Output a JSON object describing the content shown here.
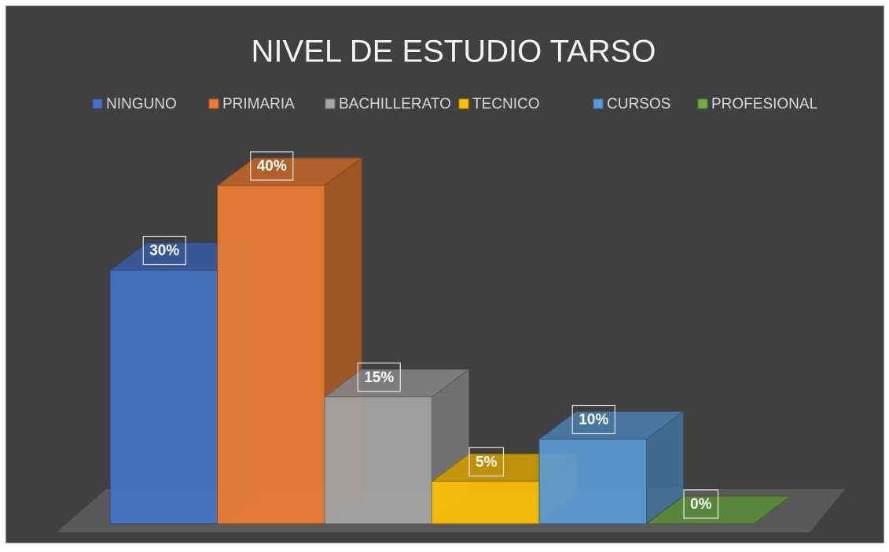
{
  "chart_data": {
    "type": "bar",
    "title": "NIVEL DE ESTUDIO TARSO",
    "series": [
      {
        "name": "NINGUNO",
        "color": "#4472c4",
        "values": [
          30
        ],
        "value_labels": [
          "30%"
        ]
      },
      {
        "name": "PRIMARIA",
        "color": "#ed7d31",
        "values": [
          40
        ],
        "value_labels": [
          "40%"
        ]
      },
      {
        "name": "BACHILLERATO",
        "color": "#a5a5a5",
        "values": [
          15
        ],
        "value_labels": [
          "15%"
        ]
      },
      {
        "name": "TECNICO",
        "color": "#ffc000",
        "values": [
          5
        ],
        "value_labels": [
          "5%"
        ]
      },
      {
        "name": "CURSOS",
        "color": "#5b9bd5",
        "values": [
          10
        ],
        "value_labels": [
          "10%"
        ]
      },
      {
        "name": "PROFESIONAL",
        "color": "#70ad47",
        "values": [
          0
        ],
        "value_labels": [
          "0%"
        ]
      }
    ],
    "legend": "top"
  }
}
